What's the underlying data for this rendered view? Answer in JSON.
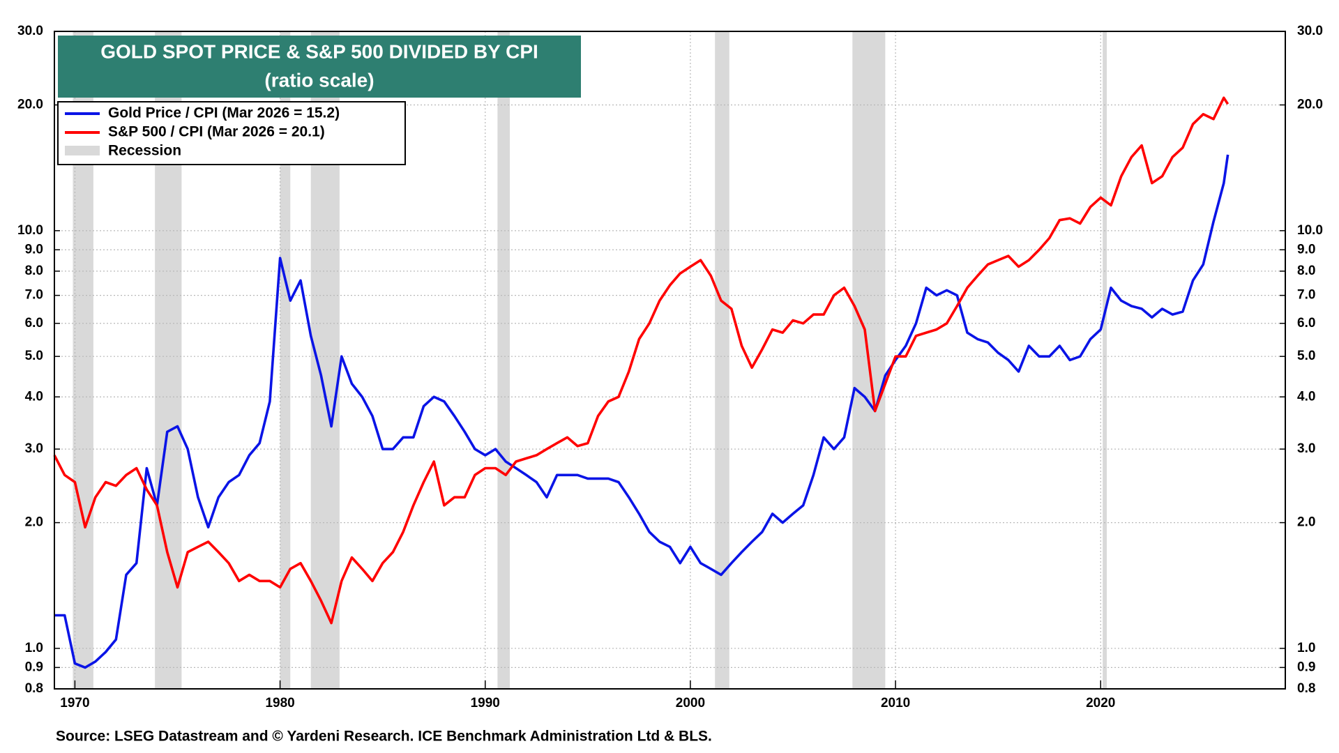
{
  "chart_data": {
    "type": "line",
    "title": "GOLD SPOT PRICE & S&P 500 DIVIDED BY CPI",
    "subtitle": "(ratio scale)",
    "source": "Source: LSEG Datastream and © Yardeni Research. ICE Benchmark Administration Ltd & BLS.",
    "log_scale": true,
    "grid": true,
    "legend_position": "upper left",
    "xlim": [
      1969,
      2029
    ],
    "xticks": [
      1970,
      1980,
      1990,
      2000,
      2010,
      2020
    ],
    "ylim": [
      0.8,
      30
    ],
    "yticks": [
      0.8,
      0.9,
      {
        "value": 1,
        "label": "1.0"
      },
      {
        "value": 2,
        "label": "2.0"
      },
      {
        "value": 3,
        "label": "3.0"
      },
      {
        "value": 4,
        "label": "4.0"
      },
      {
        "value": 5,
        "label": "5.0"
      },
      {
        "value": 6,
        "label": "6.0"
      },
      {
        "value": 7,
        "label": "7.0"
      },
      {
        "value": 8,
        "label": "8.0"
      },
      {
        "value": 9,
        "label": "9.0"
      },
      {
        "value": 10,
        "label": "10.0"
      },
      {
        "value": 20,
        "label": "20.0"
      },
      {
        "value": 30,
        "label": "30.0"
      }
    ],
    "y2lim": [
      0.8,
      30
    ],
    "y2ticks": [
      0.8,
      0.9,
      {
        "value": 1,
        "label": "1.0"
      },
      {
        "value": 2,
        "label": "2.0"
      },
      {
        "value": 3,
        "label": "3.0"
      },
      {
        "value": 4,
        "label": "4.0"
      },
      {
        "value": 5,
        "label": "5.0"
      },
      {
        "value": 6,
        "label": "6.0"
      },
      {
        "value": 7,
        "label": "7.0"
      },
      {
        "value": 8,
        "label": "8.0"
      },
      {
        "value": 9,
        "label": "9.0"
      },
      {
        "value": 10,
        "label": "10.0"
      },
      {
        "value": 20,
        "label": "20.0"
      },
      {
        "value": 30,
        "label": "30.0"
      }
    ],
    "recession_label": "Recession",
    "recession_color": "#d9d9d9",
    "recessions": [
      {
        "start": 1969.9,
        "end": 1970.9
      },
      {
        "start": 1973.9,
        "end": 1975.2
      },
      {
        "start": 1980.0,
        "end": 1980.5
      },
      {
        "start": 1981.5,
        "end": 1982.9
      },
      {
        "start": 1990.6,
        "end": 1991.2
      },
      {
        "start": 2001.2,
        "end": 2001.9
      },
      {
        "start": 2007.9,
        "end": 2009.5
      },
      {
        "start": 2020.1,
        "end": 2020.3
      }
    ],
    "x": [
      1969.0,
      1969.5,
      1970.0,
      1970.5,
      1971.0,
      1971.5,
      1972.0,
      1972.5,
      1973.0,
      1973.5,
      1974.0,
      1974.5,
      1975.0,
      1975.5,
      1976.0,
      1976.5,
      1977.0,
      1977.5,
      1978.0,
      1978.5,
      1979.0,
      1979.5,
      1980.0,
      1980.5,
      1981.0,
      1981.5,
      1982.0,
      1982.5,
      1983.0,
      1983.5,
      1984.0,
      1984.5,
      1985.0,
      1985.5,
      1986.0,
      1986.5,
      1987.0,
      1987.5,
      1988.0,
      1988.5,
      1989.0,
      1989.5,
      1990.0,
      1990.5,
      1991.0,
      1991.5,
      1992.0,
      1992.5,
      1993.0,
      1993.5,
      1994.0,
      1994.5,
      1995.0,
      1995.5,
      1996.0,
      1996.5,
      1997.0,
      1997.5,
      1998.0,
      1998.5,
      1999.0,
      1999.5,
      2000.0,
      2000.5,
      2001.0,
      2001.5,
      2002.0,
      2002.5,
      2003.0,
      2003.5,
      2004.0,
      2004.5,
      2005.0,
      2005.5,
      2006.0,
      2006.5,
      2007.0,
      2007.5,
      2008.0,
      2008.5,
      2009.0,
      2009.5,
      2010.0,
      2010.5,
      2011.0,
      2011.5,
      2012.0,
      2012.5,
      2013.0,
      2013.5,
      2014.0,
      2014.5,
      2015.0,
      2015.5,
      2016.0,
      2016.5,
      2017.0,
      2017.5,
      2018.0,
      2018.5,
      2019.0,
      2019.5,
      2020.0,
      2020.5,
      2021.0,
      2021.5,
      2022.0,
      2022.5,
      2023.0,
      2023.5,
      2024.0,
      2024.5,
      2025.0,
      2025.5,
      2026.0,
      2026.2
    ],
    "series": [
      {
        "name": "Gold Price / CPI (Mar 2026 = 15.2)",
        "color": "#0a14e6",
        "values": [
          1.2,
          1.2,
          0.92,
          0.9,
          0.93,
          0.98,
          1.05,
          1.5,
          1.6,
          2.7,
          2.2,
          3.3,
          3.4,
          3.0,
          2.3,
          1.95,
          2.3,
          2.5,
          2.6,
          2.9,
          3.1,
          3.9,
          8.6,
          6.8,
          7.6,
          5.6,
          4.5,
          3.4,
          5.0,
          4.3,
          4.0,
          3.6,
          3.0,
          3.0,
          3.2,
          3.2,
          3.8,
          4.0,
          3.9,
          3.6,
          3.3,
          3.0,
          2.9,
          3.0,
          2.8,
          2.7,
          2.6,
          2.5,
          2.3,
          2.6,
          2.6,
          2.6,
          2.55,
          2.55,
          2.55,
          2.5,
          2.3,
          2.1,
          1.9,
          1.8,
          1.75,
          1.6,
          1.75,
          1.6,
          1.55,
          1.5,
          1.6,
          1.7,
          1.8,
          1.9,
          2.1,
          2.0,
          2.1,
          2.2,
          2.6,
          3.2,
          3.0,
          3.2,
          4.2,
          4.0,
          3.7,
          4.5,
          4.9,
          5.3,
          6.0,
          7.3,
          7.0,
          7.2,
          7.0,
          5.7,
          5.5,
          5.4,
          5.1,
          4.9,
          4.6,
          5.3,
          5.0,
          5.0,
          5.3,
          4.9,
          5.0,
          5.5,
          5.8,
          7.3,
          6.8,
          6.6,
          6.5,
          6.2,
          6.5,
          6.3,
          6.4,
          7.6,
          8.3,
          10.5,
          13.0,
          15.2
        ]
      },
      {
        "name": "S&P 500 / CPI (Mar 2026 = 20.1)",
        "color": "#ff0000",
        "values": [
          2.9,
          2.6,
          2.5,
          1.95,
          2.3,
          2.5,
          2.45,
          2.6,
          2.7,
          2.4,
          2.2,
          1.7,
          1.4,
          1.7,
          1.75,
          1.8,
          1.7,
          1.6,
          1.45,
          1.5,
          1.45,
          1.45,
          1.4,
          1.55,
          1.6,
          1.45,
          1.3,
          1.15,
          1.45,
          1.65,
          1.55,
          1.45,
          1.6,
          1.7,
          1.9,
          2.2,
          2.5,
          2.8,
          2.2,
          2.3,
          2.3,
          2.6,
          2.7,
          2.7,
          2.6,
          2.8,
          2.85,
          2.9,
          3.0,
          3.1,
          3.2,
          3.05,
          3.1,
          3.6,
          3.9,
          4.0,
          4.6,
          5.5,
          6.0,
          6.8,
          7.4,
          7.9,
          8.2,
          8.5,
          7.8,
          6.8,
          6.5,
          5.3,
          4.7,
          5.2,
          5.8,
          5.7,
          6.1,
          6.0,
          6.3,
          6.3,
          7.0,
          7.3,
          6.6,
          5.8,
          3.7,
          4.3,
          5.0,
          5.0,
          5.6,
          5.7,
          5.8,
          6.0,
          6.6,
          7.3,
          7.8,
          8.3,
          8.5,
          8.7,
          8.2,
          8.5,
          9.0,
          9.6,
          10.6,
          10.7,
          10.4,
          11.4,
          12.0,
          11.5,
          13.5,
          15.0,
          16.0,
          13.0,
          13.5,
          15.0,
          15.8,
          18.0,
          19.0,
          18.5,
          20.8,
          20.1
        ]
      }
    ]
  }
}
